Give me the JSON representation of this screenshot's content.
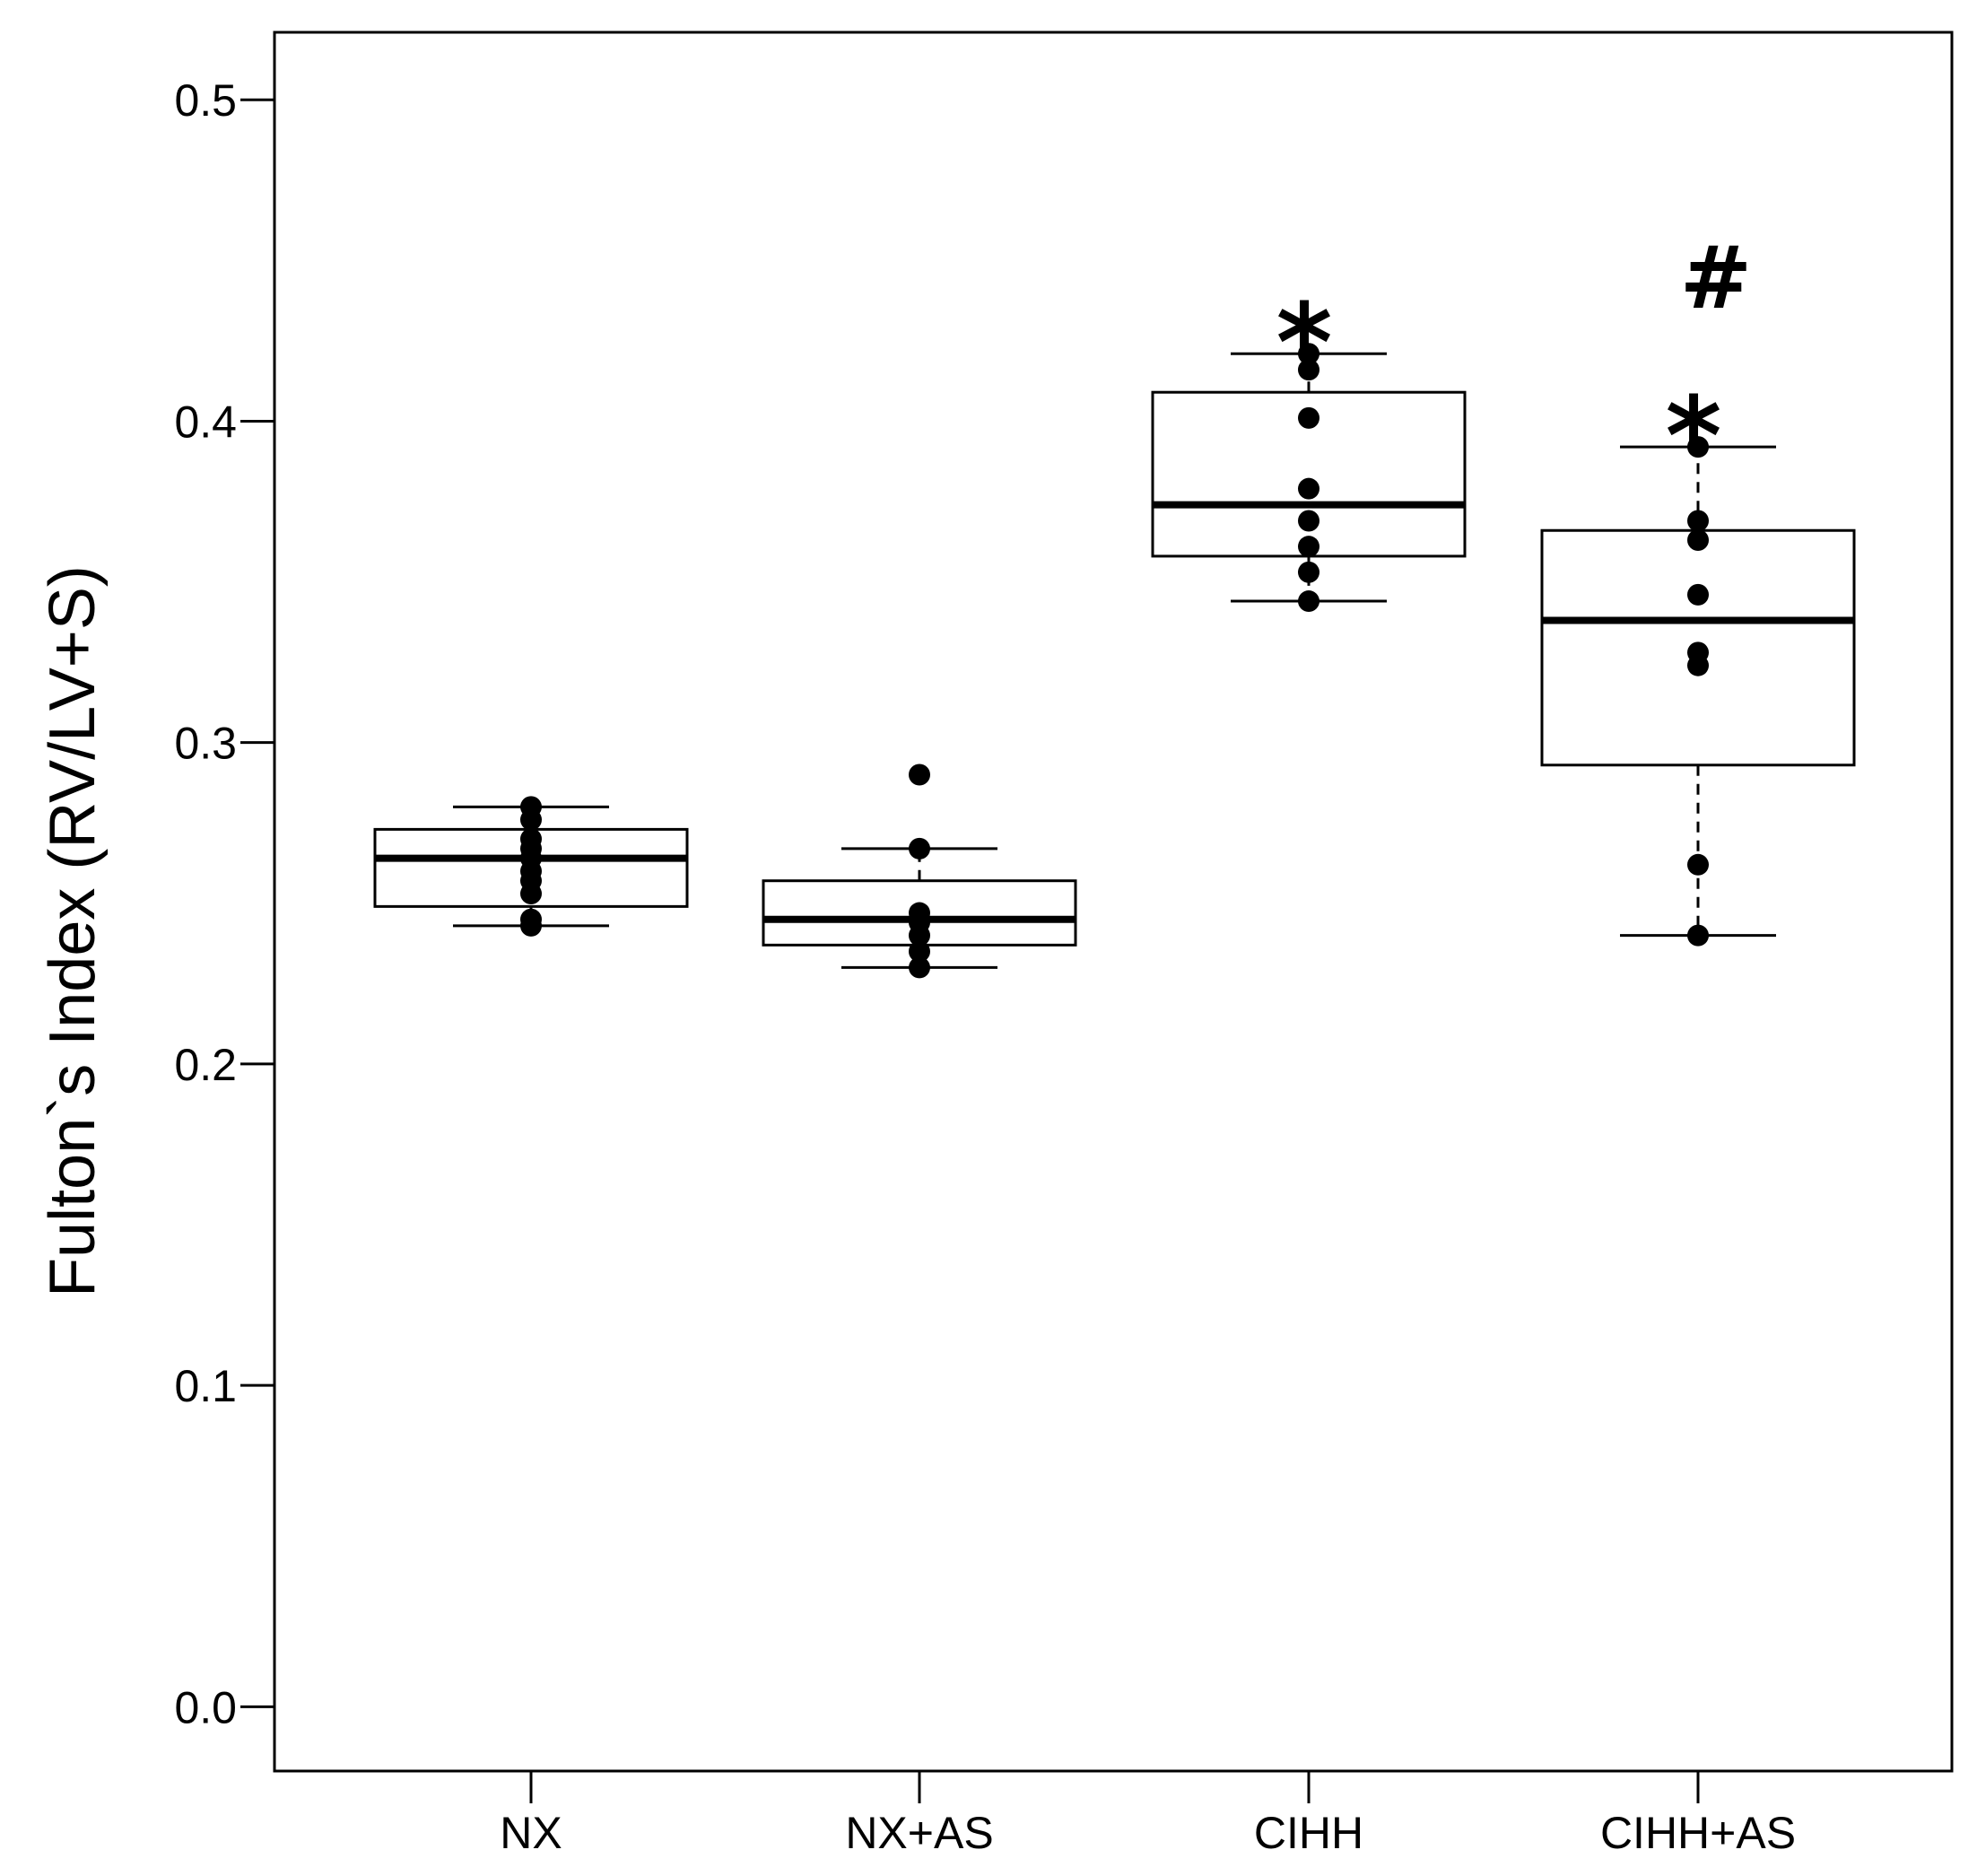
{
  "chart_data": {
    "type": "box",
    "title": "",
    "xlabel": "",
    "ylabel": "Fulton`s Index (RV/LV+S)",
    "ylim": [
      -0.02,
      0.521
    ],
    "yticks": [
      {
        "value": 0.0,
        "label": "0.0"
      },
      {
        "value": 0.1,
        "label": "0.1"
      },
      {
        "value": 0.2,
        "label": "0.2"
      },
      {
        "value": 0.3,
        "label": "0.3"
      },
      {
        "value": 0.4,
        "label": "0.4"
      },
      {
        "value": 0.5,
        "label": "0.5"
      }
    ],
    "groups": [
      {
        "name": "NX",
        "whisker_low": 0.243,
        "q1": 0.249,
        "median": 0.264,
        "q3": 0.273,
        "whisker_high": 0.28,
        "points": [
          0.28,
          0.276,
          0.27,
          0.267,
          0.264,
          0.26,
          0.257,
          0.253,
          0.245,
          0.243
        ],
        "annotations": []
      },
      {
        "name": "NX+AS",
        "whisker_low": 0.23,
        "q1": 0.237,
        "median": 0.245,
        "q3": 0.257,
        "whisker_high": 0.267,
        "points": [
          0.29,
          0.267,
          0.247,
          0.244,
          0.24,
          0.235,
          0.23
        ],
        "annotations": []
      },
      {
        "name": "CIHH",
        "whisker_low": 0.344,
        "q1": 0.358,
        "median": 0.374,
        "q3": 0.409,
        "whisker_high": 0.421,
        "points": [
          0.421,
          0.416,
          0.401,
          0.379,
          0.369,
          0.361,
          0.353,
          0.344
        ],
        "annotations": [
          "*"
        ]
      },
      {
        "name": "CIHH+AS",
        "whisker_low": 0.24,
        "q1": 0.293,
        "median": 0.338,
        "q3": 0.366,
        "whisker_high": 0.392,
        "points": [
          0.392,
          0.369,
          0.363,
          0.346,
          0.328,
          0.324,
          0.262,
          0.24
        ],
        "annotations": [
          "*",
          "#"
        ]
      }
    ]
  }
}
